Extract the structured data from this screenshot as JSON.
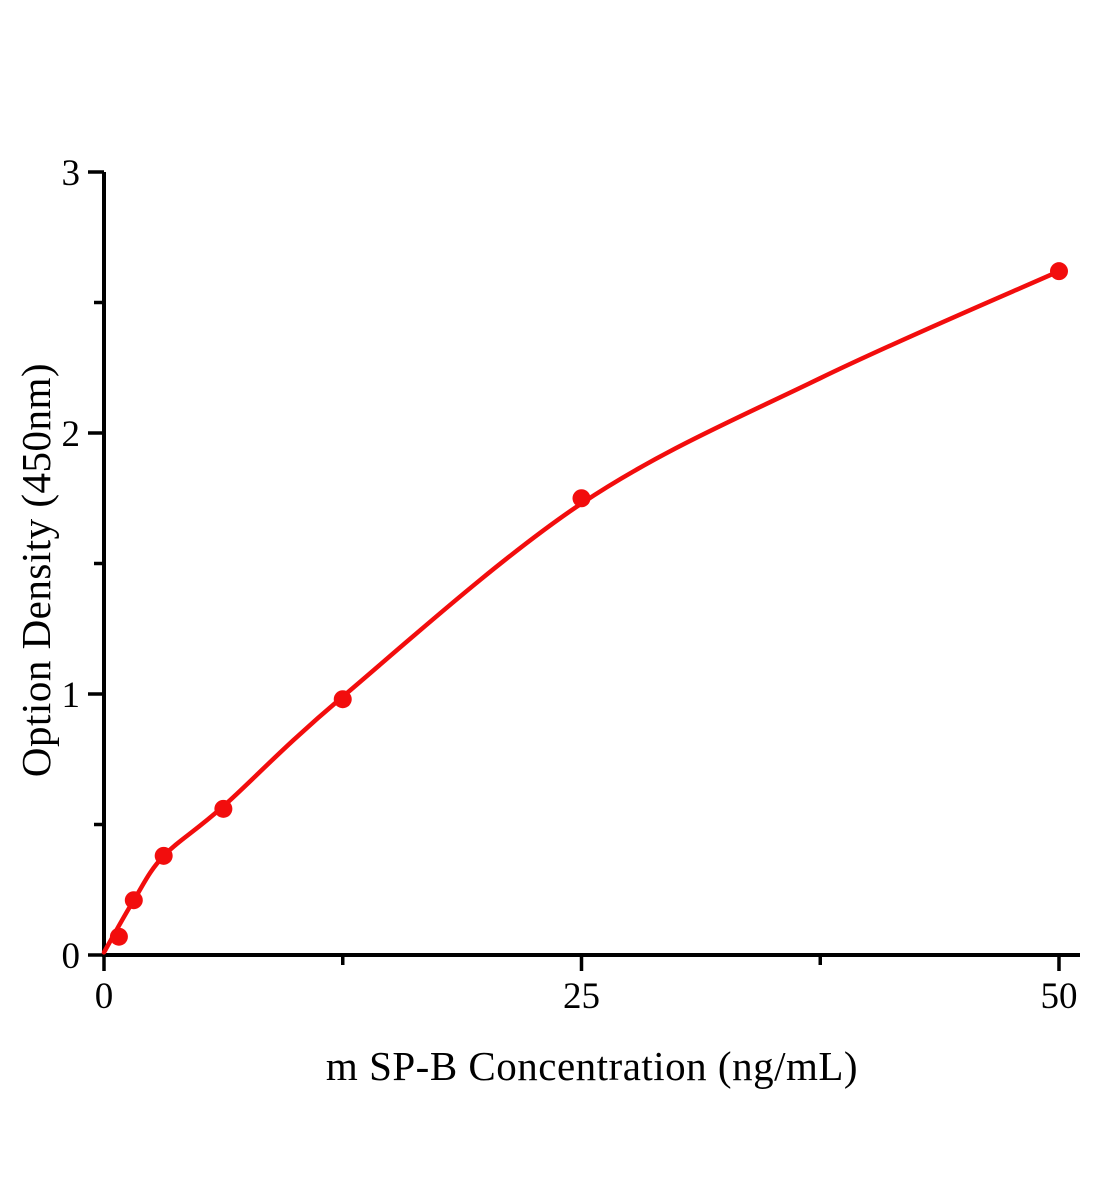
{
  "chart_data": {
    "type": "scatter",
    "title": "",
    "xlabel": "m SP-B Concentration（ng/mL）",
    "ylabel": "Option Density（450nm）",
    "xlim": [
      0,
      51.1
    ],
    "ylim": [
      0,
      3
    ],
    "grid": false,
    "legend": "none",
    "background_color": "#ffffff",
    "axis_color": "#000000",
    "accent_color": "#f20d0d",
    "x_axis": {
      "major_ticks": [
        {
          "value": 0,
          "label": "0"
        },
        {
          "value": 25,
          "label": "25"
        },
        {
          "value": 50,
          "label": "50"
        }
      ],
      "minor_ticks": [
        12.5,
        37.5
      ]
    },
    "y_axis": {
      "major_ticks": [
        {
          "value": 0,
          "label": "0"
        },
        {
          "value": 1,
          "label": "1"
        },
        {
          "value": 2,
          "label": "2"
        },
        {
          "value": 3,
          "label": "3"
        }
      ],
      "minor_ticks": [
        0.5,
        1.5,
        2.5
      ]
    },
    "series": [
      {
        "name": "standard-points",
        "kind": "scatter",
        "color": "#f20d0d",
        "marker": "circle",
        "marker_radius": 9,
        "points": [
          {
            "x": 0.78,
            "y": 0.07
          },
          {
            "x": 1.56,
            "y": 0.21
          },
          {
            "x": 3.125,
            "y": 0.38
          },
          {
            "x": 6.25,
            "y": 0.56
          },
          {
            "x": 12.5,
            "y": 0.98
          },
          {
            "x": 25,
            "y": 1.75
          },
          {
            "x": 50,
            "y": 2.62
          }
        ]
      },
      {
        "name": "fit-curve",
        "kind": "smooth-line",
        "color": "#f20d0d",
        "stroke_width": 4.5,
        "points": [
          {
            "x": 0,
            "y": 0.01
          },
          {
            "x": 1.56,
            "y": 0.21
          },
          {
            "x": 3.13,
            "y": 0.38
          },
          {
            "x": 6.25,
            "y": 0.57
          },
          {
            "x": 12.5,
            "y": 0.99
          },
          {
            "x": 25,
            "y": 1.73
          },
          {
            "x": 37.5,
            "y": 2.21
          },
          {
            "x": 50,
            "y": 2.62
          }
        ]
      }
    ]
  }
}
